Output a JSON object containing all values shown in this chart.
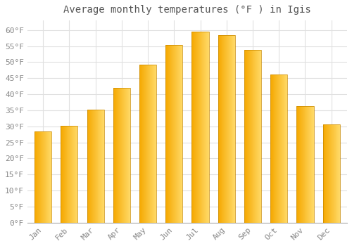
{
  "title": "Average monthly temperatures (°F ) in Igis",
  "months": [
    "Jan",
    "Feb",
    "Mar",
    "Apr",
    "May",
    "Jun",
    "Jul",
    "Aug",
    "Sep",
    "Oct",
    "Nov",
    "Dec"
  ],
  "values": [
    28.4,
    30.2,
    35.2,
    41.9,
    49.3,
    55.4,
    59.5,
    58.5,
    53.8,
    46.2,
    36.3,
    30.6
  ],
  "bar_color_left": "#F5A800",
  "bar_color_right": "#FFD966",
  "bar_edge_color": "#C88800",
  "background_color": "#FFFFFF",
  "grid_color": "#E0E0E0",
  "title_color": "#555555",
  "tick_color": "#888888",
  "title_fontsize": 10,
  "tick_fontsize": 8,
  "ylim": [
    0,
    63
  ],
  "yticks": [
    0,
    5,
    10,
    15,
    20,
    25,
    30,
    35,
    40,
    45,
    50,
    55,
    60
  ],
  "ytick_labels": [
    "0°F",
    "5°F",
    "10°F",
    "15°F",
    "20°F",
    "25°F",
    "30°F",
    "35°F",
    "40°F",
    "45°F",
    "50°F",
    "55°F",
    "60°F"
  ],
  "bar_width": 0.65,
  "n_gradient_steps": 50
}
